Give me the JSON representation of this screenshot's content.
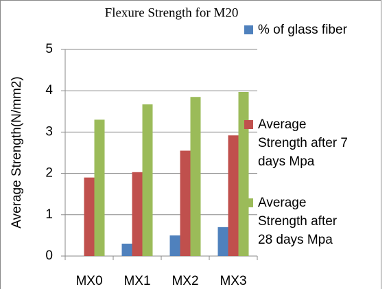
{
  "chart_data": {
    "type": "bar",
    "title": "Flexure Strength for M20",
    "y_label": "Average Strength(N/mm2)",
    "categories": [
      "MX0",
      "MX1",
      "MX2",
      "MX3"
    ],
    "series": [
      {
        "name": "% of glass fiber",
        "color": "#4f81bd",
        "values": [
          0,
          0.3,
          0.5,
          0.7
        ]
      },
      {
        "name": "Average Strength after 7 days Mpa",
        "color": "#c0504d",
        "values": [
          1.9,
          2.03,
          2.55,
          2.92
        ]
      },
      {
        "name": "Average Strength after 28 days Mpa",
        "color": "#9bbb59",
        "values": [
          3.3,
          3.67,
          3.85,
          3.97
        ]
      }
    ],
    "ylim": [
      0,
      5
    ],
    "yticks": [
      0,
      1,
      2,
      3,
      4,
      5
    ],
    "grid": true,
    "legend": "right"
  }
}
